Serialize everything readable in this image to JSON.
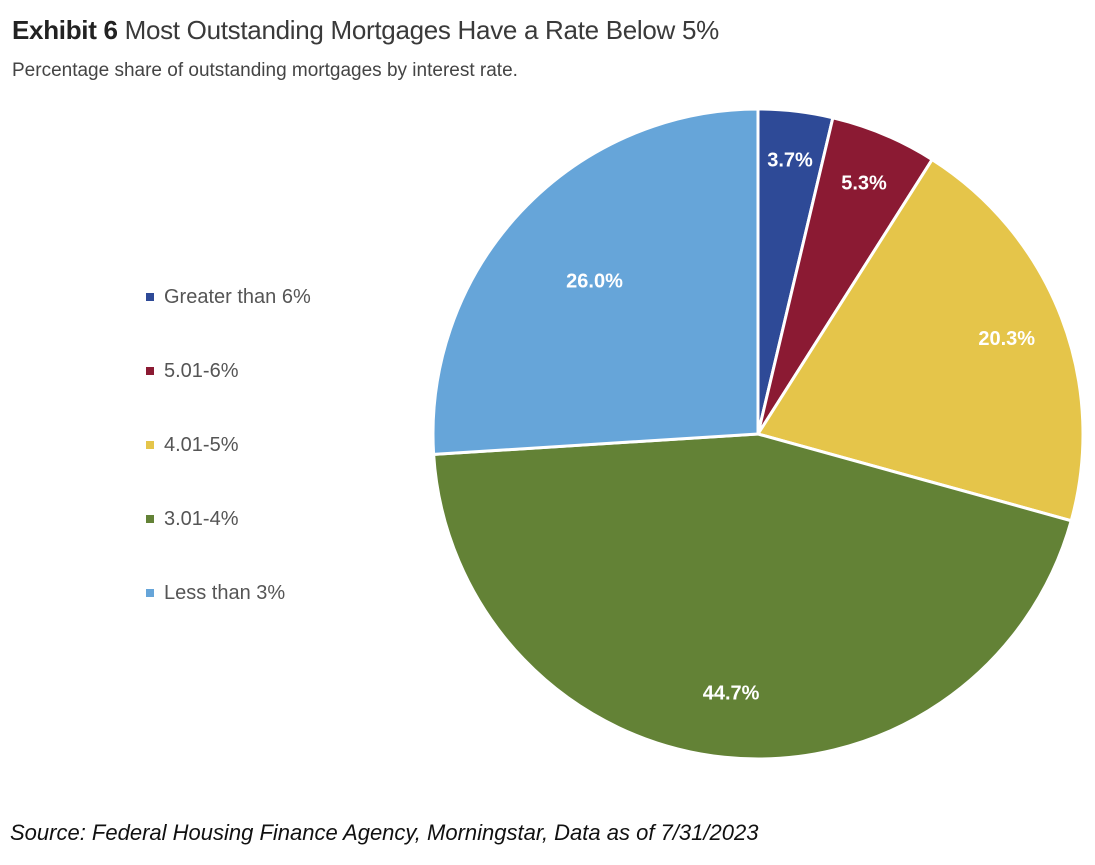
{
  "header": {
    "exhibit": "Exhibit 6",
    "title": "Most Outstanding Mortgages Have a Rate Below 5%",
    "subtitle": "Percentage share of outstanding mortgages by interest rate."
  },
  "chart_data": {
    "type": "pie",
    "title": "Exhibit 6 Most Outstanding Mortgages Have a Rate Below 5%",
    "subtitle": "Percentage share of outstanding mortgages by interest rate.",
    "legend_position": "left",
    "categories": [
      "Greater than 6%",
      "5.01-6%",
      "4.01-5%",
      "3.01-4%",
      "Less than 3%"
    ],
    "values": [
      3.7,
      5.3,
      20.3,
      44.7,
      26.0
    ],
    "labels": [
      "3.7%",
      "5.3%",
      "20.3%",
      "44.7%",
      "26.0%"
    ],
    "colors": [
      "#2e4a97",
      "#8b1a33",
      "#e5c54a",
      "#638236",
      "#66a5d9"
    ]
  },
  "footer": {
    "source": "Source: Federal Housing Finance Agency, Morningstar, Data as of 7/31/2023"
  }
}
